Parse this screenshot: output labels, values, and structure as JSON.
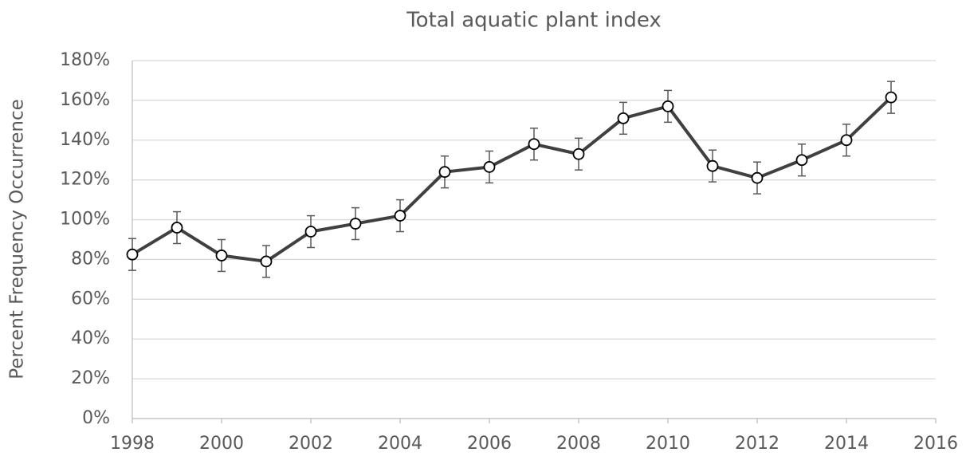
{
  "chart_data": {
    "type": "line",
    "title": "Total aquatic plant index",
    "y_label": "Percent Frequency Occurrence",
    "x": [
      1998,
      1999,
      2000,
      2001,
      2002,
      2003,
      2004,
      2005,
      2006,
      2007,
      2008,
      2009,
      2010,
      2011,
      2012,
      2013,
      2014,
      2015
    ],
    "values": [
      82.5,
      96,
      82,
      79,
      94,
      98,
      102,
      124,
      126.5,
      138,
      133,
      151,
      157,
      127,
      121,
      130,
      140,
      161.5
    ],
    "errors": [
      8,
      8,
      8,
      8,
      8,
      8,
      8,
      8,
      8,
      8,
      8,
      8,
      8,
      8,
      8,
      8,
      8,
      8
    ],
    "color": "#404040",
    "xlim": [
      1998,
      2016
    ],
    "xticks": [
      1998,
      2000,
      2002,
      2004,
      2006,
      2008,
      2010,
      2012,
      2014,
      2016
    ],
    "ylim": [
      0,
      180
    ],
    "yticks": [
      {
        "value": 0,
        "label": "0%"
      },
      {
        "value": 20,
        "label": "20%"
      },
      {
        "value": 40,
        "label": "40%"
      },
      {
        "value": 60,
        "label": "60%"
      },
      {
        "value": 80,
        "label": "80%"
      },
      {
        "value": 100,
        "label": "100%"
      },
      {
        "value": 120,
        "label": "120%"
      },
      {
        "value": 140,
        "label": "140%"
      },
      {
        "value": 160,
        "label": "160%"
      },
      {
        "value": 180,
        "label": "180%"
      }
    ],
    "grid": true
  }
}
